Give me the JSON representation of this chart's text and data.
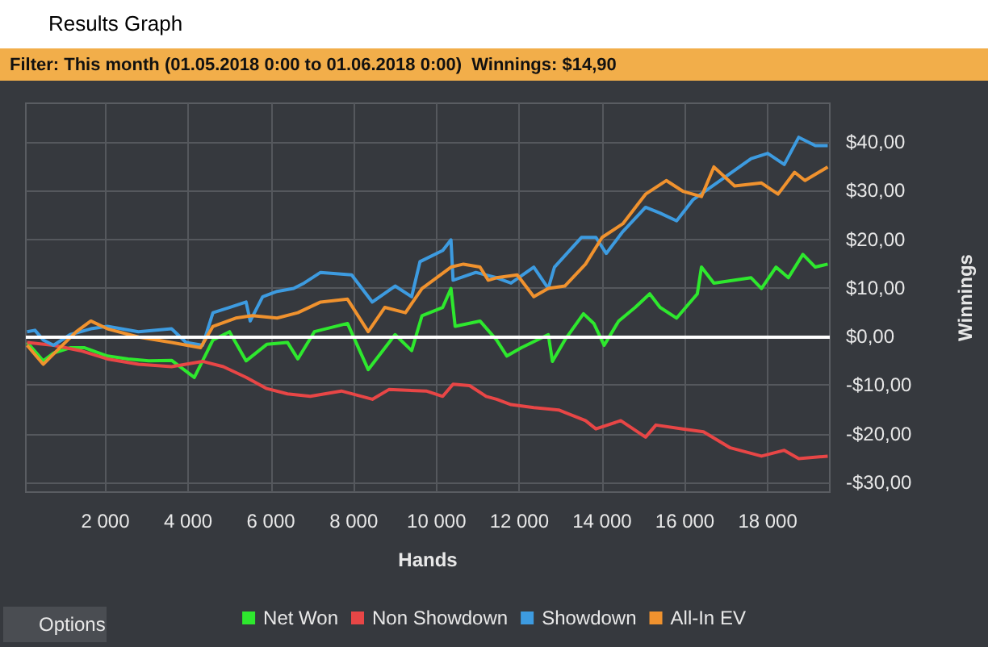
{
  "chart_data": {
    "type": "line",
    "title": "Results Graph",
    "subtitle": "Filter: This month (01.05.2018 0:00 to 01.06.2018 0:00)  Winnings: $14,90",
    "xlabel": "Hands",
    "ylabel": "Winnings",
    "annotations": [
      "Options"
    ],
    "xlim": [
      80,
      19500
    ],
    "ylim": [
      -32,
      48
    ],
    "xticks": [
      {
        "value": 2000,
        "label": "2 000"
      },
      {
        "value": 4000,
        "label": "4 000"
      },
      {
        "value": 6000,
        "label": "6 000"
      },
      {
        "value": 8000,
        "label": "8 000"
      },
      {
        "value": 10000,
        "label": "10 000"
      },
      {
        "value": 12000,
        "label": "12 000"
      },
      {
        "value": 14000,
        "label": "14 000"
      },
      {
        "value": 16000,
        "label": "16 000"
      },
      {
        "value": 18000,
        "label": "18 000"
      }
    ],
    "yticks": [
      {
        "value": -30,
        "label": "-$30,00"
      },
      {
        "value": -20,
        "label": "-$20,00"
      },
      {
        "value": -10,
        "label": "-$10,00"
      },
      {
        "value": 0,
        "label": "$0,00"
      },
      {
        "value": 10,
        "label": "$10,00"
      },
      {
        "value": 20,
        "label": "$20,00"
      },
      {
        "value": 30,
        "label": "$30,00"
      },
      {
        "value": 40,
        "label": "$40,00"
      }
    ],
    "grid": true,
    "legend": "bottom",
    "marker": "none",
    "line_style": "solid",
    "ref_lines": [
      {
        "axis": "y",
        "value": 0,
        "color": "#ffffff"
      }
    ],
    "series": [
      {
        "name": "Net Won",
        "color": "#2ee82e",
        "x": [
          110,
          500,
          750,
          1150,
          1500,
          2050,
          2550,
          3050,
          3600,
          4150,
          4600,
          5000,
          5400,
          5900,
          6400,
          6650,
          7050,
          7850,
          8350,
          9000,
          9400,
          9650,
          10150,
          10350,
          10450,
          11050,
          11450,
          11700,
          12050,
          12700,
          12800,
          13100,
          13550,
          13800,
          14050,
          14400,
          14800,
          15150,
          15400,
          15800,
          16300,
          16400,
          16700,
          17200,
          17600,
          17850,
          18200,
          18500,
          18850,
          19150,
          19450
        ],
        "values": [
          -1.2,
          -5,
          -3.4,
          -2.3,
          -2.3,
          -4,
          -4.6,
          -5,
          -4.9,
          -8.4,
          -0.7,
          1,
          -5,
          -1.6,
          -1.2,
          -4.6,
          1,
          2.7,
          -6.8,
          0.4,
          -2.9,
          4.3,
          6,
          9.9,
          2.1,
          3.2,
          -0.7,
          -4,
          -2.3,
          0.4,
          -5.1,
          -0.7,
          4.7,
          2.7,
          -1.8,
          3.2,
          6,
          8.8,
          6,
          3.8,
          8.8,
          14.3,
          11,
          11.6,
          12.1,
          9.9,
          14.3,
          12.1,
          16.9,
          14.3,
          14.9
        ]
      },
      {
        "name": "Non Showdown",
        "color": "#e84646",
        "x": [
          110,
          750,
          1400,
          2050,
          2800,
          3600,
          4350,
          4850,
          5400,
          5900,
          6400,
          6950,
          7700,
          8450,
          8850,
          9750,
          10150,
          10400,
          10800,
          11200,
          11450,
          11800,
          12350,
          12950,
          13600,
          13850,
          14450,
          15050,
          15300,
          15950,
          16450,
          17100,
          17850,
          18400,
          18750,
          19450
        ],
        "values": [
          -1.2,
          -1.8,
          -2.9,
          -4.6,
          -5.7,
          -6.2,
          -5.1,
          -6.2,
          -8.4,
          -10.7,
          -11.8,
          -12.3,
          -11.2,
          -12.9,
          -10.9,
          -11.2,
          -12.3,
          -9.8,
          -10.1,
          -12.3,
          -12.9,
          -14,
          -14.6,
          -15.1,
          -17.3,
          -19,
          -17.3,
          -20.7,
          -18.2,
          -19,
          -19.6,
          -22.9,
          -24.6,
          -23.4,
          -25.1,
          -24.6
        ]
      },
      {
        "name": "Showdown",
        "color": "#3d9be0",
        "x": [
          110,
          300,
          500,
          750,
          1150,
          1650,
          2050,
          2800,
          3600,
          3950,
          4350,
          4600,
          5000,
          5400,
          5500,
          5800,
          6150,
          6550,
          6800,
          7200,
          7950,
          8450,
          9000,
          9400,
          9600,
          10150,
          10350,
          10400,
          10950,
          11450,
          11800,
          12350,
          12700,
          12850,
          13500,
          13850,
          14100,
          14500,
          15050,
          15400,
          15800,
          16200,
          16850,
          17600,
          18000,
          18400,
          18750,
          19150,
          19450
        ],
        "values": [
          1,
          1.3,
          -0.7,
          -1.8,
          0.4,
          1.6,
          2.1,
          1,
          1.6,
          -1.2,
          -1.8,
          4.9,
          6,
          7.1,
          3.2,
          8.2,
          9.3,
          9.9,
          11,
          13.2,
          12.7,
          7.1,
          10.4,
          8.2,
          15.4,
          17.7,
          19.9,
          11.6,
          13.2,
          12.1,
          11,
          14.3,
          9.9,
          14.3,
          20.4,
          20.4,
          17.1,
          21.6,
          26.6,
          25.4,
          23.8,
          28.2,
          32.1,
          36.6,
          37.7,
          35.4,
          41,
          39.3,
          39.3
        ]
      },
      {
        "name": "All-In EV",
        "color": "#f0922e",
        "x": [
          110,
          500,
          900,
          1300,
          1650,
          2050,
          2800,
          3600,
          4300,
          4600,
          5150,
          5550,
          6150,
          6650,
          7200,
          7850,
          8350,
          8750,
          9250,
          9650,
          10350,
          10650,
          11050,
          11250,
          11450,
          11950,
          12350,
          12700,
          13100,
          13600,
          14000,
          14500,
          15050,
          15550,
          15950,
          16400,
          16700,
          17200,
          17850,
          18250,
          18650,
          18900,
          19450
        ],
        "values": [
          -1.8,
          -5.7,
          -2.3,
          1,
          3.2,
          1.6,
          -0.1,
          -1.2,
          -2.3,
          2.1,
          3.8,
          4.3,
          3.8,
          4.9,
          7.1,
          7.7,
          1,
          6,
          4.9,
          9.9,
          14.3,
          14.9,
          14.3,
          11.6,
          12.1,
          12.7,
          8.2,
          9.9,
          10.4,
          14.9,
          20.4,
          23.2,
          29.3,
          32.1,
          29.9,
          28.8,
          34.9,
          31,
          31.6,
          29.3,
          33.8,
          32.1,
          34.9
        ]
      }
    ]
  }
}
